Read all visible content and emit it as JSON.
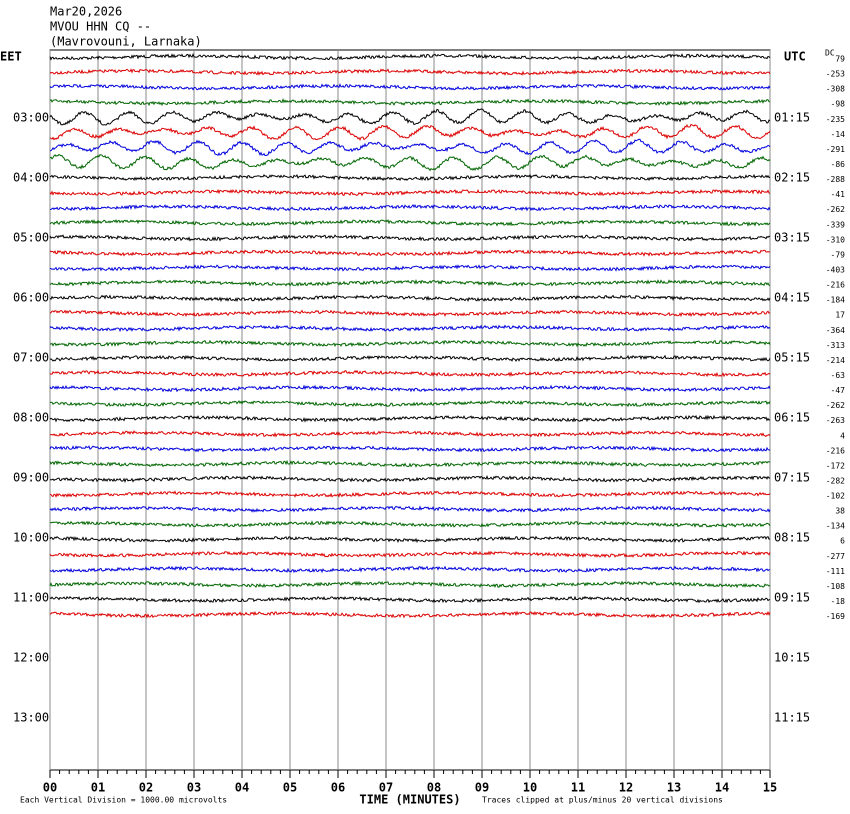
{
  "chart_data": {
    "type": "helicorder",
    "title": [
      "Mar20,2026",
      "MVOU HHN CQ --",
      "(Mavrovouni, Larnaka)"
    ],
    "left_zone": "EET",
    "right_zone": "UTC",
    "dc_label": "DC",
    "left_hours": [
      "03:00",
      "04:00",
      "05:00",
      "06:00",
      "07:00",
      "08:00",
      "09:00",
      "10:00",
      "11:00",
      "12:00",
      "13:00"
    ],
    "right_hours": [
      "01:15",
      "02:15",
      "03:15",
      "04:15",
      "05:15",
      "06:15",
      "07:15",
      "08:15",
      "09:15",
      "10:15",
      "11:15"
    ],
    "trace_colors": [
      "#000000",
      "#dd0000",
      "#0000dd",
      "#006600"
    ],
    "dc_offsets": [
      79,
      -253,
      -308,
      -98,
      -235,
      -14,
      -291,
      -86,
      -288,
      -41,
      -262,
      -339,
      -310,
      -79,
      -403,
      -216,
      -184,
      17,
      -364,
      -313,
      -214,
      -63,
      -47,
      -262,
      -263,
      4,
      -216,
      -172,
      -282,
      -102,
      38,
      -134,
      6,
      -277,
      -111,
      -108,
      -18,
      -169
    ],
    "xlim": [
      0,
      15
    ],
    "xticks": [
      {
        "value": 0,
        "label": "00"
      },
      {
        "value": 1,
        "label": "01"
      },
      {
        "value": 2,
        "label": "02"
      },
      {
        "value": 3,
        "label": "03"
      },
      {
        "value": 4,
        "label": "04"
      },
      {
        "value": 5,
        "label": "05"
      },
      {
        "value": 6,
        "label": "06"
      },
      {
        "value": 7,
        "label": "07"
      },
      {
        "value": 8,
        "label": "08"
      },
      {
        "value": 9,
        "label": "09"
      },
      {
        "value": 10,
        "label": "10"
      },
      {
        "value": 11,
        "label": "11"
      },
      {
        "value": 12,
        "label": "12"
      },
      {
        "value": 13,
        "label": "13"
      },
      {
        "value": 14,
        "label": "14"
      },
      {
        "value": 15,
        "label": "15"
      }
    ],
    "xlabel": "TIME (MINUTES)",
    "scale_note": "Each Vertical Division = 1000.00 microvolts",
    "clip_note": "Traces clipped at plus/minus 20 vertical divisions"
  }
}
